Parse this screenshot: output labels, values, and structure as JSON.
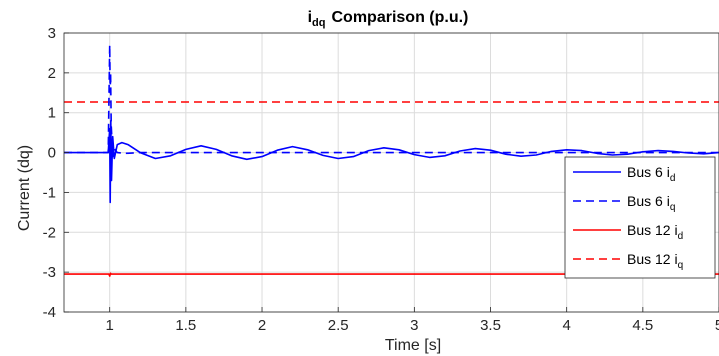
{
  "chart_data": {
    "type": "line",
    "title": {
      "main": "i",
      "sub": "dq",
      "rest": "Comparison  (p.u.)"
    },
    "xlabel": "Time [s]",
    "ylabel": "Current (dq)",
    "xlim": [
      0.7,
      5.0
    ],
    "ylim": [
      -4,
      3
    ],
    "xticks": [
      1,
      1.5,
      2,
      2.5,
      3,
      3.5,
      4,
      4.5,
      5
    ],
    "xtick_labels": [
      "1",
      "1.5",
      "2",
      "2.5",
      "3",
      "3.5",
      "4",
      "4.5",
      "5"
    ],
    "yticks": [
      -4,
      -3,
      -2,
      -1,
      0,
      1,
      2,
      3
    ],
    "ytick_labels": [
      "-4",
      "-3",
      "-2",
      "-1",
      "0",
      "1",
      "2",
      "3"
    ],
    "grid": true,
    "legend_position": "right",
    "series": [
      {
        "name": "Bus 6 i_d",
        "label_main": "Bus  6  i",
        "label_sub": "d",
        "color": "#0000ff",
        "style": "solid",
        "x": [
          0.7,
          0.99,
          1.0,
          1.003,
          1.007,
          1.012,
          1.02,
          1.03,
          1.05,
          1.08,
          1.12,
          1.16,
          1.2,
          1.3,
          1.4,
          1.5,
          1.6,
          1.7,
          1.8,
          1.9,
          2.0,
          2.1,
          2.2,
          2.3,
          2.4,
          2.5,
          2.6,
          2.7,
          2.8,
          2.9,
          3.0,
          3.1,
          3.2,
          3.3,
          3.4,
          3.5,
          3.6,
          3.7,
          3.8,
          3.9,
          4.0,
          4.1,
          4.2,
          4.3,
          4.4,
          4.5,
          4.6,
          4.7,
          4.8,
          4.9,
          5.0
        ],
        "y": [
          0,
          0,
          0.6,
          -1.25,
          0.8,
          -0.7,
          0.4,
          -0.15,
          0.2,
          0.25,
          0.2,
          0.1,
          0.0,
          -0.15,
          -0.08,
          0.08,
          0.17,
          0.08,
          -0.08,
          -0.17,
          -0.1,
          0.06,
          0.15,
          0.07,
          -0.07,
          -0.15,
          -0.1,
          0.05,
          0.12,
          0.07,
          -0.05,
          -0.12,
          -0.08,
          0.04,
          0.1,
          0.06,
          -0.04,
          -0.09,
          -0.06,
          0.03,
          0.07,
          0.05,
          -0.02,
          -0.06,
          -0.04,
          0.02,
          0.05,
          0.03,
          -0.01,
          -0.03,
          0.0
        ]
      },
      {
        "name": "Bus 6 i_q",
        "label_main": "Bus  6  i",
        "label_sub": "q",
        "color": "#0000ff",
        "style": "dashed",
        "x": [
          0.7,
          0.99,
          1.0,
          1.003,
          1.006,
          1.01,
          1.015,
          1.02,
          1.03,
          1.05,
          1.1,
          1.2,
          5.0
        ],
        "y": [
          0,
          0,
          2.7,
          1.5,
          2.0,
          0.7,
          0.3,
          -0.1,
          0.1,
          0.0,
          -0.02,
          0.0,
          0.0
        ]
      },
      {
        "name": "Bus 12 i_d",
        "label_main": "Bus  12  i",
        "label_sub": "d",
        "color": "#ff0000",
        "style": "solid",
        "x": [
          0.7,
          0.995,
          1.0,
          1.005,
          1.01,
          5.0
        ],
        "y": [
          -3.05,
          -3.05,
          -3.1,
          -3.03,
          -3.05,
          -3.05
        ]
      },
      {
        "name": "Bus 12 i_q",
        "label_main": "Bus  12  i",
        "label_sub": "q",
        "color": "#ff0000",
        "style": "dashed",
        "x": [
          0.7,
          5.0
        ],
        "y": [
          1.27,
          1.27
        ]
      }
    ]
  }
}
